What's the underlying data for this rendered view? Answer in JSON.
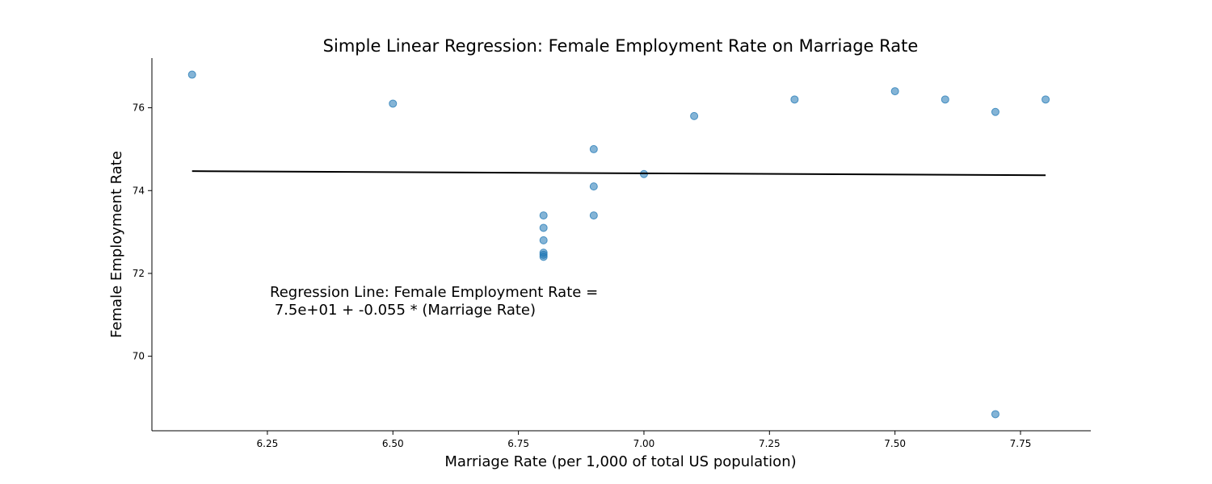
{
  "chart_data": {
    "type": "scatter",
    "title": "Simple Linear Regression: Female Employment Rate on Marriage Rate",
    "xlabel": "Marriage Rate (per 1,000 of total US population)",
    "ylabel": "Female Employment Rate",
    "xlim": [
      6.02,
      7.89
    ],
    "ylim": [
      68.2,
      77.2
    ],
    "x_ticks": [
      6.25,
      6.5,
      6.75,
      7.0,
      7.25,
      7.5,
      7.75
    ],
    "x_tick_labels": [
      "6.25",
      "6.50",
      "6.75",
      "7.00",
      "7.25",
      "7.50",
      "7.75"
    ],
    "y_ticks": [
      70,
      72,
      74,
      76
    ],
    "y_tick_labels": [
      "70",
      "72",
      "74",
      "76"
    ],
    "grid": false,
    "series": [
      {
        "marker_color": "#1f77b4",
        "x": [
          6.1,
          6.5,
          6.8,
          6.8,
          6.8,
          6.8,
          6.8,
          6.8,
          6.9,
          6.9,
          6.9,
          7.0,
          7.1,
          7.3,
          7.5,
          7.6,
          7.7,
          7.7,
          7.8
        ],
        "y": [
          76.8,
          76.1,
          73.4,
          73.1,
          72.8,
          72.5,
          72.4,
          72.45,
          75.0,
          74.1,
          73.4,
          74.4,
          75.8,
          76.2,
          76.4,
          76.2,
          75.9,
          68.6,
          76.2
        ]
      }
    ],
    "regression_line": {
      "color": "#000000",
      "x": [
        6.1,
        7.8
      ],
      "y": [
        74.47,
        74.37
      ]
    },
    "annotation": {
      "line1": "Regression Line: Female Employment Rate =",
      "line2": " 7.5e+01 + -0.055 * (Marriage Rate)"
    }
  }
}
